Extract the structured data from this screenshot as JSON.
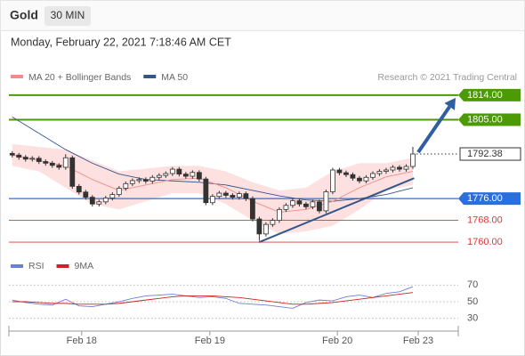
{
  "header": {
    "symbol": "Gold",
    "interval": "30 MIN",
    "datetime": "Monday, February 22, 2021 7:18:46 AM CET"
  },
  "chart_data": {
    "type": "candlestick",
    "legend": [
      {
        "name": "MA 20 + Bollinger Bands",
        "color": "#f28b8b"
      },
      {
        "name": "MA 50",
        "color": "#34568b"
      }
    ],
    "source": "Research © 2021 Trading Central",
    "xlim": [
      -0.5,
      66.8
    ],
    "ylim": [
      1757.4,
      1817.9
    ],
    "xticks": [
      {
        "value": 10.4,
        "label": "Feb 18"
      },
      {
        "value": 29.6,
        "label": "Feb 19"
      },
      {
        "value": 48.7,
        "label": "Feb 20"
      },
      {
        "value": 60.8,
        "label": "Feb 23"
      }
    ],
    "x": [
      0,
      1,
      2,
      3,
      4,
      5,
      6,
      7,
      8,
      9,
      10,
      11,
      12,
      13,
      14,
      15,
      16,
      17,
      18,
      19,
      20,
      21,
      22,
      23,
      24,
      25,
      26,
      27,
      28,
      29,
      30,
      31,
      32,
      33,
      34,
      35,
      36,
      37,
      38,
      39,
      40,
      41,
      42,
      43,
      44,
      45,
      46,
      47,
      48,
      49,
      50,
      51,
      52,
      53,
      54,
      55,
      56,
      57,
      58,
      59,
      60
    ],
    "open": [
      1792.6,
      1792.0,
      1791.2,
      1790.5,
      1790.8,
      1789.6,
      1789.0,
      1788.2,
      1787.5,
      1791.0,
      1780.5,
      1778.4,
      1776.5,
      1774.0,
      1774.8,
      1776.2,
      1777.5,
      1779.8,
      1781.5,
      1782.6,
      1783.0,
      1782.4,
      1783.8,
      1784.5,
      1785.2,
      1786.8,
      1785.0,
      1784.2,
      1785.6,
      1783.2,
      1774.5,
      1776.8,
      1778.0,
      1777.2,
      1776.5,
      1777.8,
      1776.0,
      1768.5,
      1763.0,
      1766.5,
      1768.0,
      1772.0,
      1773.5,
      1775.2,
      1774.0,
      1773.0,
      1774.8,
      1771.5,
      1778.5,
      1786.5,
      1785.5,
      1784.8,
      1783.5,
      1782.5,
      1783.8,
      1785.2,
      1786.0,
      1786.5,
      1787.5,
      1786.8,
      1787.8
    ],
    "high": [
      1793.4,
      1792.8,
      1792.0,
      1791.6,
      1791.6,
      1790.4,
      1789.8,
      1789.0,
      1792.3,
      1791.8,
      1781.3,
      1779.2,
      1777.3,
      1775.6,
      1777.0,
      1778.3,
      1780.6,
      1782.3,
      1783.4,
      1783.8,
      1783.8,
      1784.6,
      1785.3,
      1786.0,
      1787.6,
      1787.6,
      1785.8,
      1786.4,
      1786.4,
      1784.0,
      1777.6,
      1778.8,
      1778.8,
      1778.0,
      1778.6,
      1778.6,
      1776.8,
      1769.3,
      1767.3,
      1768.8,
      1772.8,
      1774.3,
      1776.0,
      1776.0,
      1774.8,
      1775.6,
      1775.6,
      1779.3,
      1787.3,
      1787.3,
      1786.3,
      1785.6,
      1784.3,
      1784.6,
      1786.0,
      1786.8,
      1787.3,
      1788.3,
      1788.3,
      1788.6,
      1795.0
    ],
    "low": [
      1791.1,
      1790.3,
      1789.6,
      1789.6,
      1788.7,
      1788.1,
      1787.3,
      1786.6,
      1786.6,
      1779.6,
      1777.5,
      1775.6,
      1773.1,
      1773.1,
      1773.9,
      1775.3,
      1776.6,
      1778.9,
      1780.6,
      1781.7,
      1781.5,
      1781.5,
      1782.9,
      1783.6,
      1784.3,
      1784.1,
      1783.3,
      1783.3,
      1782.3,
      1773.6,
      1773.6,
      1775.9,
      1776.3,
      1775.6,
      1775.6,
      1775.1,
      1767.6,
      1760.5,
      1762.1,
      1765.6,
      1767.1,
      1771.1,
      1772.6,
      1773.1,
      1772.1,
      1772.1,
      1770.6,
      1770.6,
      1777.6,
      1784.6,
      1783.9,
      1782.6,
      1781.6,
      1781.6,
      1782.9,
      1784.3,
      1785.1,
      1785.6,
      1785.9,
      1785.9,
      1786.9
    ],
    "close": [
      1792.0,
      1791.2,
      1790.5,
      1790.8,
      1789.6,
      1789.0,
      1788.2,
      1787.5,
      1791.0,
      1780.5,
      1778.4,
      1776.5,
      1774.0,
      1774.8,
      1776.2,
      1777.5,
      1779.8,
      1781.5,
      1782.6,
      1783.0,
      1782.4,
      1783.8,
      1784.5,
      1785.2,
      1786.8,
      1785.0,
      1784.2,
      1785.6,
      1783.2,
      1774.5,
      1776.8,
      1778.0,
      1777.2,
      1776.5,
      1777.8,
      1776.0,
      1768.5,
      1763.0,
      1766.5,
      1768.0,
      1772.0,
      1773.5,
      1775.2,
      1774.0,
      1773.0,
      1774.8,
      1771.5,
      1778.5,
      1786.5,
      1785.5,
      1784.8,
      1783.5,
      1782.5,
      1783.8,
      1785.2,
      1786.0,
      1786.5,
      1787.5,
      1786.8,
      1787.8,
      1792.4
    ],
    "up_color": "#ffffff",
    "down_color": "#333333",
    "indicator_x": [
      0,
      4,
      8,
      12,
      16,
      20,
      24,
      28,
      32,
      36,
      40,
      44,
      48,
      52,
      56,
      60
    ],
    "ma20": [
      1792,
      1790,
      1788,
      1783,
      1779,
      1781,
      1783,
      1783.5,
      1780,
      1775,
      1771,
      1772,
      1775,
      1780,
      1784,
      1786
    ],
    "ma50": [
      1806,
      1800,
      1794,
      1789,
      1785,
      1783,
      1782.5,
      1782,
      1781,
      1779,
      1777,
      1775.5,
      1775,
      1776,
      1777.5,
      1780
    ],
    "bb_upper": [
      1796,
      1795,
      1794,
      1790,
      1786,
      1787,
      1788,
      1788,
      1786,
      1782,
      1779,
      1780,
      1786,
      1789,
      1789,
      1791
    ],
    "bb_lower": [
      1788,
      1786,
      1780,
      1774,
      1772,
      1775,
      1778,
      1778,
      1774,
      1768,
      1763,
      1764,
      1766,
      1772,
      1779,
      1781
    ],
    "band_color": "#fde0e0",
    "trendline": {
      "x": [
        37,
        60.2
      ],
      "y": [
        1760,
        1783.5
      ],
      "color": "#34568b"
    },
    "arrow": {
      "x": [
        60.8,
        66.4
      ],
      "y": [
        1793,
        1813
      ],
      "color": "#2f5f9e"
    },
    "levels": [
      {
        "value": 1814,
        "label": "1814.00",
        "color": "#4c9a06",
        "style": "filled"
      },
      {
        "value": 1805,
        "label": "1805.00",
        "color": "#4c9a06",
        "style": "filled"
      },
      {
        "value": 1792.38,
        "label": "1792.38",
        "color": "#333333",
        "style": "current"
      },
      {
        "value": 1776,
        "label": "1776.00",
        "color": "#2a6fdb",
        "style": "filled"
      },
      {
        "value": 1768,
        "label": "1768.00",
        "color": "#d93a3a",
        "style": "text"
      },
      {
        "value": 1760,
        "label": "1760.00",
        "color": "#d93a3a",
        "style": "text"
      }
    ],
    "rsi": {
      "legend": [
        {
          "name": "RSI",
          "color": "#6b7fd7"
        },
        {
          "name": "9MA",
          "color": "#cc2222"
        }
      ],
      "ylim": [
        20,
        80
      ],
      "yticks": [
        30,
        50,
        70
      ],
      "x": [
        0,
        2,
        4,
        6,
        8,
        10,
        12,
        14,
        16,
        18,
        20,
        22,
        24,
        26,
        28,
        30,
        32,
        34,
        36,
        38,
        40,
        42,
        44,
        46,
        48,
        50,
        52,
        54,
        56,
        58,
        60
      ],
      "values": [
        52,
        49,
        47,
        46,
        53,
        45,
        44,
        47,
        50,
        54,
        57,
        58,
        59,
        57,
        55,
        56,
        54,
        48,
        47,
        46,
        44,
        42,
        49,
        52,
        51,
        56,
        58,
        55,
        60,
        62,
        68
      ],
      "ma": [
        50,
        50,
        49,
        48,
        48,
        47,
        47,
        47,
        48,
        50,
        52,
        54,
        56,
        57,
        57,
        57,
        56,
        55,
        53,
        51,
        49,
        47,
        47,
        48,
        49,
        51,
        53,
        55,
        57,
        59,
        61
      ]
    }
  }
}
